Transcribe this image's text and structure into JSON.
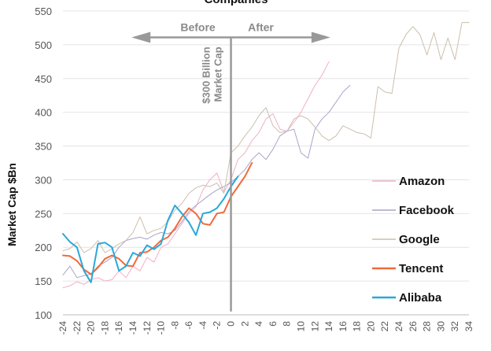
{
  "chart_data": {
    "type": "line",
    "title": "Companies",
    "xlabel": "",
    "ylabel": "Market Cap $Bn",
    "xlim": [
      -24,
      34
    ],
    "ylim": [
      100,
      550
    ],
    "yticks": [
      100,
      150,
      200,
      250,
      300,
      350,
      400,
      450,
      500,
      550
    ],
    "xticks": [
      -24,
      -22,
      -20,
      -18,
      -16,
      -14,
      -12,
      -10,
      -8,
      -6,
      -4,
      -2,
      0,
      2,
      4,
      6,
      8,
      10,
      12,
      14,
      16,
      18,
      20,
      22,
      24,
      26,
      28,
      30,
      32,
      34
    ],
    "grid": "horizontal",
    "legend": "right",
    "annotations": {
      "before": "Before",
      "after": "After",
      "marker": [
        "$300 Billion",
        "Market Cap"
      ]
    },
    "series": [
      {
        "name": "Amazon",
        "color": "#f2aec4",
        "width": 1,
        "points": [
          [
            -24,
            140
          ],
          [
            -23,
            143
          ],
          [
            -22,
            149
          ],
          [
            -21,
            145
          ],
          [
            -20,
            152
          ],
          [
            -19,
            155
          ],
          [
            -18,
            150
          ],
          [
            -17,
            152
          ],
          [
            -16,
            165
          ],
          [
            -15,
            155
          ],
          [
            -14,
            172
          ],
          [
            -13,
            165
          ],
          [
            -12,
            185
          ],
          [
            -11,
            178
          ],
          [
            -10,
            200
          ],
          [
            -9,
            205
          ],
          [
            -8,
            220
          ],
          [
            -7,
            235
          ],
          [
            -6,
            250
          ],
          [
            -5,
            260
          ],
          [
            -4,
            285
          ],
          [
            -3,
            300
          ],
          [
            -2,
            310
          ],
          [
            -1,
            282
          ],
          [
            0,
            300
          ],
          [
            1,
            330
          ],
          [
            2,
            340
          ],
          [
            3,
            358
          ],
          [
            4,
            370
          ],
          [
            5,
            390
          ],
          [
            6,
            398
          ],
          [
            7,
            375
          ],
          [
            8,
            372
          ],
          [
            9,
            385
          ],
          [
            10,
            400
          ],
          [
            11,
            420
          ],
          [
            12,
            440
          ],
          [
            13,
            455
          ],
          [
            14,
            475
          ]
        ]
      },
      {
        "name": "Facebook",
        "color": "#a8a4cc",
        "width": 1,
        "points": [
          [
            -24,
            159
          ],
          [
            -23,
            172
          ],
          [
            -22,
            155
          ],
          [
            -21,
            158
          ],
          [
            -20,
            160
          ],
          [
            -19,
            172
          ],
          [
            -18,
            178
          ],
          [
            -17,
            185
          ],
          [
            -16,
            200
          ],
          [
            -15,
            210
          ],
          [
            -14,
            213
          ],
          [
            -13,
            215
          ],
          [
            -12,
            212
          ],
          [
            -11,
            218
          ],
          [
            -10,
            222
          ],
          [
            -9,
            220
          ],
          [
            -8,
            225
          ],
          [
            -7,
            238
          ],
          [
            -6,
            253
          ],
          [
            -5,
            262
          ],
          [
            -4,
            270
          ],
          [
            -3,
            278
          ],
          [
            -2,
            285
          ],
          [
            -1,
            290
          ],
          [
            0,
            296
          ],
          [
            1,
            305
          ],
          [
            2,
            315
          ],
          [
            3,
            330
          ],
          [
            4,
            340
          ],
          [
            5,
            330
          ],
          [
            6,
            345
          ],
          [
            7,
            365
          ],
          [
            8,
            372
          ],
          [
            9,
            375
          ],
          [
            10,
            340
          ],
          [
            11,
            332
          ],
          [
            12,
            375
          ],
          [
            13,
            390
          ],
          [
            14,
            400
          ],
          [
            15,
            415
          ],
          [
            16,
            430
          ],
          [
            17,
            440
          ]
        ]
      },
      {
        "name": "Google",
        "color": "#cbbfae",
        "width": 1,
        "points": [
          [
            -24,
            195
          ],
          [
            -23,
            198
          ],
          [
            -22,
            208
          ],
          [
            -21,
            192
          ],
          [
            -20,
            198
          ],
          [
            -19,
            210
          ],
          [
            -18,
            192
          ],
          [
            -17,
            198
          ],
          [
            -16,
            205
          ],
          [
            -15,
            210
          ],
          [
            -14,
            222
          ],
          [
            -13,
            245
          ],
          [
            -12,
            220
          ],
          [
            -11,
            225
          ],
          [
            -10,
            228
          ],
          [
            -9,
            238
          ],
          [
            -8,
            255
          ],
          [
            -7,
            265
          ],
          [
            -6,
            280
          ],
          [
            -5,
            288
          ],
          [
            -4,
            292
          ],
          [
            -3,
            290
          ],
          [
            -2,
            295
          ],
          [
            -1,
            280
          ],
          [
            0,
            340
          ],
          [
            1,
            350
          ],
          [
            2,
            365
          ],
          [
            3,
            378
          ],
          [
            4,
            395
          ],
          [
            5,
            407
          ],
          [
            6,
            380
          ],
          [
            7,
            370
          ],
          [
            8,
            372
          ],
          [
            9,
            390
          ],
          [
            10,
            395
          ],
          [
            11,
            390
          ],
          [
            12,
            378
          ],
          [
            13,
            365
          ],
          [
            14,
            358
          ],
          [
            15,
            365
          ],
          [
            16,
            380
          ],
          [
            17,
            375
          ],
          [
            18,
            370
          ],
          [
            19,
            368
          ],
          [
            20,
            362
          ],
          [
            21,
            438
          ],
          [
            22,
            430
          ],
          [
            23,
            428
          ],
          [
            24,
            495
          ],
          [
            25,
            515
          ],
          [
            26,
            527
          ],
          [
            27,
            515
          ],
          [
            28,
            485
          ],
          [
            29,
            518
          ],
          [
            30,
            478
          ],
          [
            31,
            510
          ],
          [
            32,
            478
          ],
          [
            33,
            533
          ],
          [
            34,
            533
          ]
        ]
      },
      {
        "name": "Tencent",
        "color": "#ef6a3c",
        "width": 2,
        "points": [
          [
            -24,
            188
          ],
          [
            -23,
            187
          ],
          [
            -22,
            180
          ],
          [
            -21,
            167
          ],
          [
            -20,
            160
          ],
          [
            -19,
            170
          ],
          [
            -18,
            183
          ],
          [
            -17,
            188
          ],
          [
            -16,
            183
          ],
          [
            -15,
            173
          ],
          [
            -14,
            172
          ],
          [
            -13,
            192
          ],
          [
            -12,
            193
          ],
          [
            -11,
            200
          ],
          [
            -10,
            210
          ],
          [
            -9,
            215
          ],
          [
            -8,
            228
          ],
          [
            -7,
            245
          ],
          [
            -6,
            258
          ],
          [
            -5,
            250
          ],
          [
            -4,
            235
          ],
          [
            -3,
            233
          ],
          [
            -2,
            250
          ],
          [
            -1,
            252
          ],
          [
            0,
            275
          ],
          [
            1,
            290
          ],
          [
            2,
            305
          ],
          [
            3,
            325
          ]
        ]
      },
      {
        "name": "Alibaba",
        "color": "#2aa8d8",
        "width": 2,
        "points": [
          [
            -24,
            220
          ],
          [
            -23,
            208
          ],
          [
            -22,
            200
          ],
          [
            -21,
            165
          ],
          [
            -20,
            148
          ],
          [
            -19,
            205
          ],
          [
            -18,
            207
          ],
          [
            -17,
            200
          ],
          [
            -16,
            165
          ],
          [
            -15,
            172
          ],
          [
            -14,
            192
          ],
          [
            -13,
            187
          ],
          [
            -12,
            203
          ],
          [
            -11,
            197
          ],
          [
            -10,
            205
          ],
          [
            -9,
            240
          ],
          [
            -8,
            262
          ],
          [
            -7,
            250
          ],
          [
            -6,
            237
          ],
          [
            -5,
            218
          ],
          [
            -4,
            250
          ],
          [
            -3,
            252
          ],
          [
            -2,
            258
          ],
          [
            -1,
            272
          ],
          [
            0,
            290
          ],
          [
            1,
            305
          ]
        ]
      }
    ]
  }
}
